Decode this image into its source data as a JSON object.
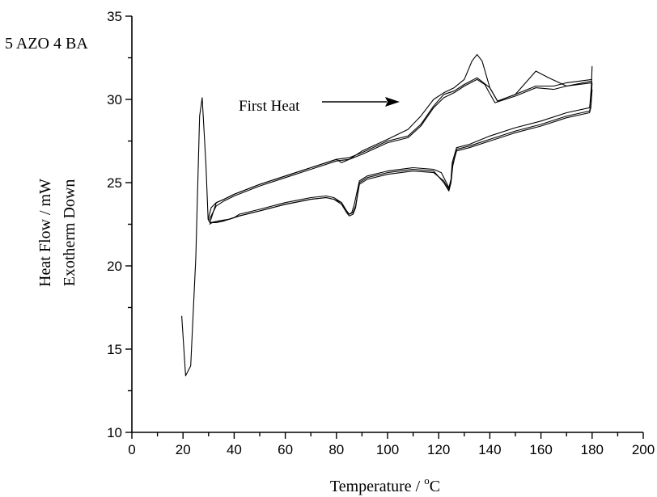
{
  "chart_data": {
    "type": "line",
    "sample_label": "5 AZO 4 BA",
    "annotation": "First Heat",
    "ylabel_line1": "Heat Flow / mW",
    "ylabel_line2": "Exotherm Down",
    "xlabel_main": "Temperature / ",
    "xlabel_degree": "o",
    "xlabel_unit": "C",
    "xlim": [
      0,
      200
    ],
    "ylim": [
      10,
      35
    ],
    "xticks": [
      "0",
      "20",
      "40",
      "60",
      "80",
      "100",
      "120",
      "140",
      "160",
      "180",
      "200"
    ],
    "yticks": [
      "10",
      "15",
      "20",
      "25",
      "30",
      "35"
    ],
    "series": [
      {
        "x": [
          19.5,
          21,
          23,
          25,
          26.5,
          27.5,
          29,
          29.8,
          30.5,
          33,
          36,
          40,
          50,
          60,
          70,
          80,
          82,
          85,
          90,
          100,
          108,
          113,
          118,
          122,
          126,
          130,
          133,
          135,
          137,
          140,
          143,
          150,
          158,
          163,
          170,
          180
        ],
        "y": [
          17.0,
          13.4,
          14.0,
          20.5,
          29.0,
          30.1,
          26.0,
          22.8,
          22.6,
          23.8,
          24.0,
          24.3,
          24.9,
          25.4,
          25.9,
          26.4,
          26.2,
          26.4,
          26.9,
          27.6,
          28.2,
          29.0,
          30.0,
          30.4,
          30.7,
          31.2,
          32.3,
          32.7,
          32.3,
          30.7,
          29.9,
          30.3,
          31.7,
          31.3,
          30.8,
          31.1
        ]
      },
      {
        "x": [
          29.8,
          31,
          33,
          36,
          40,
          50,
          60,
          70,
          80,
          85,
          90,
          100,
          108,
          113,
          118,
          122,
          126,
          130,
          135,
          140,
          143,
          150,
          158,
          165,
          170,
          180
        ],
        "y": [
          22.8,
          23.5,
          23.8,
          24.0,
          24.3,
          24.9,
          25.4,
          25.9,
          26.4,
          26.5,
          26.8,
          27.5,
          27.8,
          28.5,
          29.6,
          30.3,
          30.5,
          30.9,
          31.3,
          30.7,
          29.9,
          30.3,
          30.8,
          30.8,
          31.0,
          31.2
        ]
      },
      {
        "x": [
          30,
          33,
          36,
          40,
          50,
          60,
          70,
          80,
          85,
          90,
          100,
          108,
          113,
          118,
          122,
          126,
          130,
          135,
          138,
          142,
          150,
          158,
          165,
          170,
          180
        ],
        "y": [
          22.7,
          23.6,
          23.9,
          24.2,
          24.8,
          25.3,
          25.8,
          26.3,
          26.4,
          26.7,
          27.4,
          27.7,
          28.4,
          29.5,
          30.1,
          30.4,
          30.8,
          31.2,
          30.9,
          29.8,
          30.2,
          30.7,
          30.6,
          30.8,
          31.0
        ]
      },
      {
        "x": [
          180,
          179.7,
          179.2,
          179,
          170,
          160,
          150,
          140,
          132,
          127,
          125.3,
          124.8,
          124,
          123,
          121,
          118,
          110,
          100,
          92,
          89,
          87,
          86,
          85,
          84,
          82,
          79,
          76,
          70,
          60,
          50,
          42,
          40,
          36,
          33,
          31.5,
          30.3
        ],
        "y": [
          32.0,
          30.8,
          29.8,
          29.5,
          29.2,
          28.7,
          28.3,
          27.8,
          27.3,
          27.1,
          26.2,
          25.2,
          24.7,
          25.0,
          25.6,
          25.8,
          25.9,
          25.7,
          25.4,
          25.1,
          23.7,
          23.2,
          23.1,
          23.3,
          23.8,
          24.1,
          24.2,
          24.1,
          23.8,
          23.4,
          23.1,
          22.9,
          22.7,
          22.6,
          22.6,
          22.5
        ]
      },
      {
        "x": [
          180,
          179.5,
          179,
          170,
          160,
          150,
          140,
          132,
          127,
          125.5,
          124.8,
          124,
          122,
          118,
          110,
          100,
          92,
          89,
          87.5,
          86.5,
          85,
          84,
          82,
          79,
          76,
          70,
          60,
          50,
          42,
          38,
          34,
          31,
          30.5
        ],
        "y": [
          31.0,
          29.6,
          29.3,
          29.0,
          28.5,
          28.1,
          27.6,
          27.2,
          27.0,
          26.0,
          25.0,
          24.5,
          25.0,
          25.7,
          25.8,
          25.6,
          25.3,
          25.0,
          23.5,
          23.1,
          23.0,
          23.2,
          23.7,
          24.0,
          24.1,
          24.0,
          23.7,
          23.3,
          23.0,
          22.8,
          22.7,
          22.6,
          22.6
        ]
      },
      {
        "x": [
          180,
          179.5,
          179,
          170,
          160,
          150,
          140,
          132,
          127,
          125.5,
          124.8,
          124,
          122,
          118,
          110,
          100,
          92,
          89,
          87.5,
          86.5,
          85,
          84,
          82,
          79,
          76,
          70,
          60,
          50,
          42,
          38,
          34,
          31,
          30.5
        ],
        "y": [
          30.6,
          29.5,
          29.2,
          28.9,
          28.4,
          28.0,
          27.5,
          27.1,
          26.9,
          26.1,
          25.1,
          24.6,
          25.1,
          25.6,
          25.7,
          25.5,
          25.2,
          24.9,
          23.6,
          23.2,
          23.1,
          23.3,
          23.8,
          24.0,
          24.1,
          24.0,
          23.7,
          23.3,
          23.0,
          22.8,
          22.7,
          22.6,
          22.6
        ]
      }
    ]
  }
}
